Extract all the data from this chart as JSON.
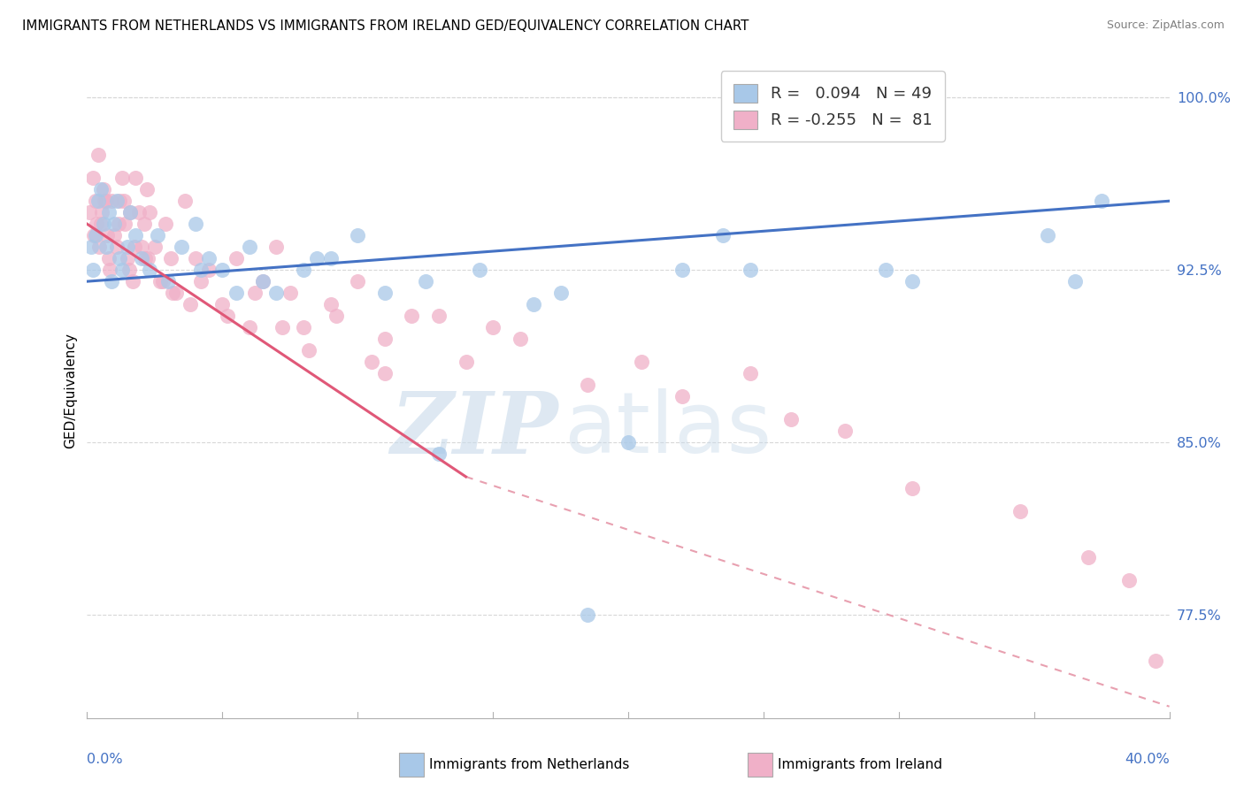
{
  "title": "IMMIGRANTS FROM NETHERLANDS VS IMMIGRANTS FROM IRELAND GED/EQUIVALENCY CORRELATION CHART",
  "source": "Source: ZipAtlas.com",
  "ylabel": "GED/Equivalency",
  "xlim": [
    0.0,
    40.0
  ],
  "ylim": [
    73.0,
    101.5
  ],
  "yticks": [
    77.5,
    85.0,
    92.5,
    100.0
  ],
  "ytick_labels": [
    "77.5%",
    "85.0%",
    "92.5%",
    "100.0%"
  ],
  "xtick_left": "0.0%",
  "xtick_right": "40.0%",
  "r_netherlands": 0.094,
  "n_netherlands": 49,
  "r_ireland": -0.255,
  "n_ireland": 81,
  "color_netherlands": "#a8c8e8",
  "color_ireland": "#f0b0c8",
  "color_trend_netherlands": "#4472c4",
  "color_trend_ireland": "#e05878",
  "color_dashed": "#e8a0b0",
  "watermark_zip": "ZIP",
  "watermark_atlas": "atlas",
  "nl_x": [
    0.15,
    0.2,
    0.3,
    0.4,
    0.5,
    0.6,
    0.7,
    0.8,
    0.9,
    1.0,
    1.1,
    1.2,
    1.3,
    1.5,
    1.6,
    1.8,
    2.0,
    2.3,
    2.6,
    3.0,
    3.5,
    4.0,
    4.5,
    5.0,
    5.5,
    6.0,
    6.5,
    7.0,
    8.0,
    9.0,
    10.0,
    11.0,
    13.0,
    14.5,
    16.5,
    17.5,
    18.5,
    20.0,
    23.5,
    24.5,
    29.5,
    30.5,
    35.5,
    36.5,
    37.5,
    22.0,
    12.5,
    8.5,
    4.2
  ],
  "nl_y": [
    93.5,
    92.5,
    94.0,
    95.5,
    96.0,
    94.5,
    93.5,
    95.0,
    92.0,
    94.5,
    95.5,
    93.0,
    92.5,
    93.5,
    95.0,
    94.0,
    93.0,
    92.5,
    94.0,
    92.0,
    93.5,
    94.5,
    93.0,
    92.5,
    91.5,
    93.5,
    92.0,
    91.5,
    92.5,
    93.0,
    94.0,
    91.5,
    84.5,
    92.5,
    91.0,
    91.5,
    77.5,
    85.0,
    94.0,
    92.5,
    92.5,
    92.0,
    94.0,
    92.0,
    95.5,
    92.5,
    92.0,
    93.0,
    92.5
  ],
  "ir_x": [
    0.1,
    0.2,
    0.3,
    0.4,
    0.5,
    0.6,
    0.7,
    0.8,
    0.9,
    1.0,
    1.1,
    1.2,
    1.3,
    1.4,
    1.5,
    1.6,
    1.7,
    1.8,
    1.9,
    2.0,
    2.1,
    2.2,
    2.3,
    2.5,
    2.7,
    2.9,
    3.1,
    3.3,
    3.6,
    4.0,
    4.5,
    5.0,
    5.5,
    6.0,
    6.5,
    7.0,
    7.5,
    8.0,
    9.0,
    10.0,
    11.0,
    12.0,
    13.0,
    14.0,
    15.0,
    16.0,
    18.5,
    20.5,
    22.0,
    24.5,
    26.0,
    28.0,
    30.5,
    34.5,
    37.0,
    38.5,
    39.5,
    2.8,
    3.8,
    0.25,
    0.35,
    0.45,
    0.55,
    1.15,
    1.35,
    1.55,
    2.15,
    4.2,
    5.2,
    6.2,
    7.2,
    8.2,
    9.2,
    10.5,
    1.75,
    2.25,
    0.65,
    0.75,
    0.85,
    3.15,
    11.0
  ],
  "ir_y": [
    95.0,
    96.5,
    95.5,
    97.5,
    94.5,
    96.0,
    95.5,
    93.0,
    95.5,
    94.0,
    93.5,
    95.5,
    96.5,
    94.5,
    93.0,
    95.0,
    92.0,
    96.5,
    95.0,
    93.5,
    94.5,
    96.0,
    95.0,
    93.5,
    92.0,
    94.5,
    93.0,
    91.5,
    95.5,
    93.0,
    92.5,
    91.0,
    93.0,
    90.0,
    92.0,
    93.5,
    91.5,
    90.0,
    91.0,
    92.0,
    89.5,
    90.5,
    90.5,
    88.5,
    90.0,
    89.5,
    87.5,
    88.5,
    87.0,
    88.0,
    86.0,
    85.5,
    83.0,
    82.0,
    80.0,
    79.0,
    75.5,
    92.0,
    91.0,
    94.0,
    94.5,
    93.5,
    95.0,
    94.5,
    95.5,
    92.5,
    93.0,
    92.0,
    90.5,
    91.5,
    90.0,
    89.0,
    90.5,
    88.5,
    93.5,
    93.0,
    95.5,
    94.0,
    92.5,
    91.5,
    88.0
  ],
  "trend_nl_x0": 0.0,
  "trend_nl_x1": 40.0,
  "trend_nl_y0": 92.0,
  "trend_nl_y1": 95.5,
  "trend_ir_x0": 0.0,
  "trend_ir_x1": 14.0,
  "trend_ir_y0": 94.5,
  "trend_ir_y1": 83.5,
  "dash_ir_x0": 14.0,
  "dash_ir_x1": 40.0,
  "dash_ir_y0": 83.5,
  "dash_ir_y1": 73.5
}
